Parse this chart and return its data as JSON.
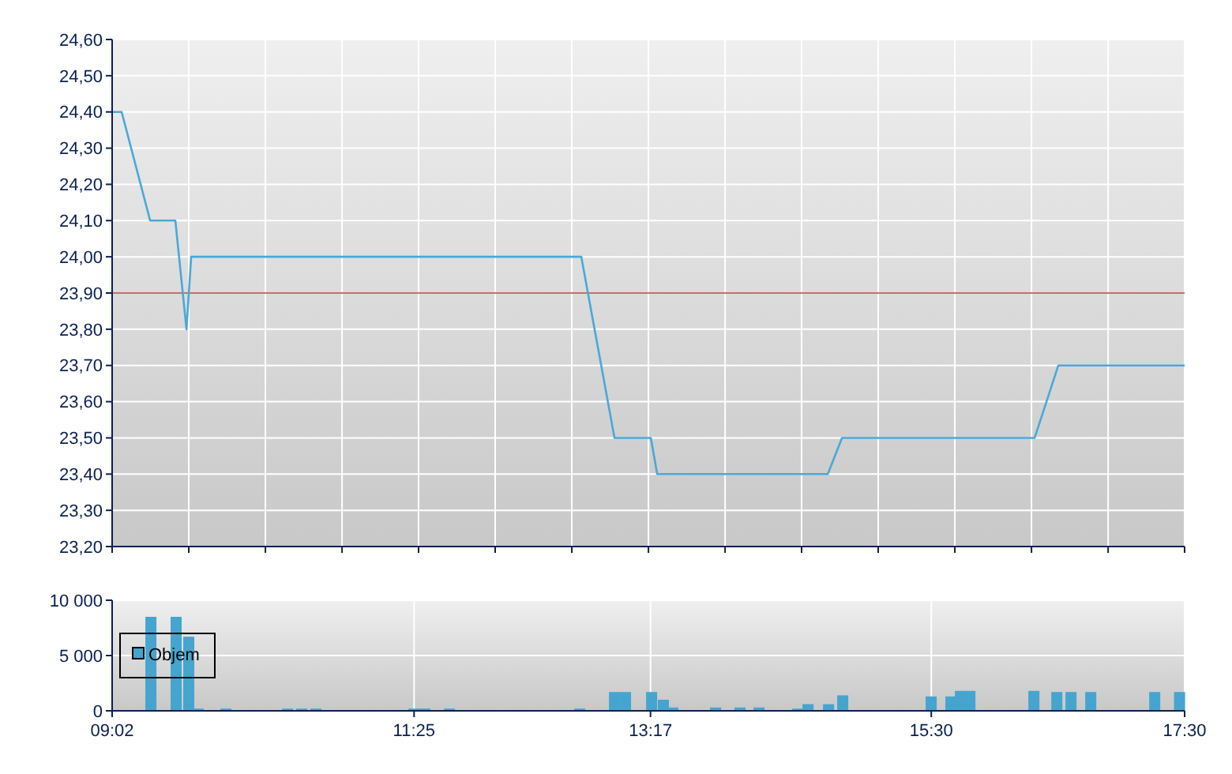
{
  "chart_data": [
    {
      "type": "line",
      "xlim": [
        9.033,
        17.5
      ],
      "ylim": [
        23.2,
        24.6
      ],
      "tick_labels": "y",
      "grid": true,
      "legend": false,
      "marker": "none",
      "line_style": "solid",
      "xticks": [
        {
          "value": 9.033,
          "label": null
        },
        {
          "value": 9.638,
          "label": null
        },
        {
          "value": 10.243,
          "label": null
        },
        {
          "value": 10.848,
          "label": null
        },
        {
          "value": 11.452,
          "label": null
        },
        {
          "value": 12.057,
          "label": null
        },
        {
          "value": 12.662,
          "label": null
        },
        {
          "value": 13.267,
          "label": null
        },
        {
          "value": 13.872,
          "label": null
        },
        {
          "value": 14.476,
          "label": null
        },
        {
          "value": 15.081,
          "label": null
        },
        {
          "value": 15.686,
          "label": null
        },
        {
          "value": 16.291,
          "label": null
        },
        {
          "value": 16.896,
          "label": null
        },
        {
          "value": 17.5,
          "label": null
        }
      ],
      "yticks": [
        {
          "value": 23.2,
          "label": "23,20"
        },
        {
          "value": 23.3,
          "label": "23,30"
        },
        {
          "value": 23.4,
          "label": "23,40"
        },
        {
          "value": 23.5,
          "label": "23,50"
        },
        {
          "value": 23.6,
          "label": "23,60"
        },
        {
          "value": 23.7,
          "label": "23,70"
        },
        {
          "value": 23.8,
          "label": "23,80"
        },
        {
          "value": 23.9,
          "label": "23,90"
        },
        {
          "value": 24.0,
          "label": "24,00"
        },
        {
          "value": 24.1,
          "label": "24,10"
        },
        {
          "value": 24.2,
          "label": "24,20"
        },
        {
          "value": 24.3,
          "label": "24,30"
        },
        {
          "value": 24.4,
          "label": "24,40"
        },
        {
          "value": 24.5,
          "label": "24,50"
        },
        {
          "value": 24.6,
          "label": "24,60"
        }
      ],
      "ref_lines": [
        {
          "axis": "y",
          "value": 23.9,
          "label": null,
          "color": "#b0413e"
        }
      ],
      "series": [
        {
          "color": "#4aa8d8",
          "x": [
            9.033,
            9.108,
            9.333,
            9.532,
            9.62,
            9.657,
            12.737,
            12.999,
            13.286,
            13.336,
            14.683,
            14.795,
            16.316,
            16.503,
            17.5
          ],
          "values": [
            24.4,
            24.4,
            24.1,
            24.1,
            23.8,
            24.0,
            24.0,
            23.5,
            23.5,
            23.4,
            23.4,
            23.5,
            23.5,
            23.7,
            23.7
          ]
        }
      ]
    },
    {
      "type": "bar",
      "xlim": [
        9.033,
        17.5
      ],
      "ylim": [
        0,
        10000
      ],
      "grid": true,
      "legend": "left",
      "xticks": [
        {
          "value": 9.033,
          "label": "09:02"
        },
        {
          "value": 11.4167,
          "label": "11:25"
        },
        {
          "value": 13.2833,
          "label": "13:17"
        },
        {
          "value": 15.5,
          "label": "15:30"
        },
        {
          "value": 17.5,
          "label": "17:30"
        }
      ],
      "yticks": [
        {
          "value": 0,
          "label": "0"
        },
        {
          "value": 5000,
          "label": "5 000"
        },
        {
          "value": 10000,
          "label": "10 000"
        }
      ],
      "series": [
        {
          "name": "Objem",
          "color": "#45a5cf",
          "x": [
            9.339,
            9.538,
            9.638,
            9.713,
            9.931,
            10.418,
            10.53,
            10.642,
            11.415,
            11.502,
            11.696,
            12.725,
            12.999,
            13.086,
            13.292,
            13.385,
            13.46,
            13.797,
            13.99,
            14.14,
            14.446,
            14.527,
            14.689,
            14.801,
            15.499,
            15.655,
            15.73,
            15.805,
            16.31,
            16.491,
            16.603,
            16.759,
            17.264,
            17.46
          ],
          "values": [
            8500,
            8500,
            6700,
            200,
            200,
            200,
            200,
            200,
            200,
            200,
            200,
            200,
            1700,
            1700,
            1700,
            1000,
            300,
            300,
            300,
            300,
            200,
            600,
            600,
            1400,
            1300,
            1300,
            1800,
            1800,
            1800,
            1700,
            1700,
            1700,
            1700,
            1700
          ]
        }
      ]
    }
  ]
}
